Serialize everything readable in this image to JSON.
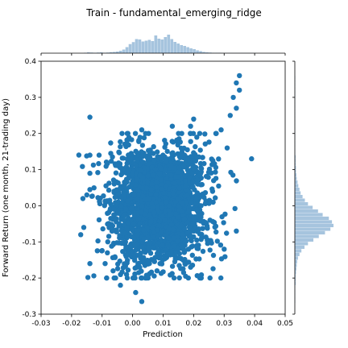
{
  "chart_data": {
    "type": "scatter",
    "title": "Train - fundamental_emerging_ridge",
    "xlabel": "Prediction",
    "ylabel": "Forward Return (one month, 21-trading day)",
    "xlim": [
      -0.03,
      0.05
    ],
    "ylim": [
      -0.3,
      0.4
    ],
    "xticks": [
      "-0.03",
      "-0.02",
      "-0.01",
      "0.00",
      "0.01",
      "0.02",
      "0.03",
      "0.04",
      "0.05"
    ],
    "xtick_values": [
      -0.03,
      -0.02,
      -0.01,
      0.0,
      0.01,
      0.02,
      0.03,
      0.04,
      0.05
    ],
    "yticks": [
      "-0.3",
      "-0.2",
      "-0.1",
      "0.0",
      "0.1",
      "0.2",
      "0.3",
      "0.4"
    ],
    "ytick_values": [
      -0.3,
      -0.2,
      -0.1,
      0.0,
      0.1,
      0.2,
      0.3,
      0.4
    ],
    "grid": false,
    "point_color": "#1f77b4",
    "hist_color": "#a6c4de",
    "notable_points": [
      {
        "x": -0.014,
        "y": 0.245
      },
      {
        "x": 0.035,
        "y": 0.36
      },
      {
        "x": 0.034,
        "y": 0.34
      },
      {
        "x": 0.035,
        "y": 0.32
      },
      {
        "x": 0.033,
        "y": 0.3
      },
      {
        "x": 0.034,
        "y": 0.27
      },
      {
        "x": 0.032,
        "y": 0.25
      },
      {
        "x": 0.031,
        "y": 0.16
      },
      {
        "x": 0.039,
        "y": 0.13
      },
      {
        "x": 0.02,
        "y": 0.24
      },
      {
        "x": 0.019,
        "y": 0.22
      },
      {
        "x": 0.022,
        "y": 0.2
      },
      {
        "x": 0.003,
        "y": 0.21
      },
      {
        "x": 0.013,
        "y": 0.22
      },
      {
        "x": 0.003,
        "y": -0.265
      },
      {
        "x": 0.001,
        "y": -0.24
      },
      {
        "x": -0.004,
        "y": -0.22
      },
      {
        "x": 0.003,
        "y": -0.2
      },
      {
        "x": -0.002,
        "y": -0.19
      },
      {
        "x": 0.002,
        "y": -0.185
      },
      {
        "x": 0.008,
        "y": -0.18
      },
      {
        "x": 0.019,
        "y": -0.17
      },
      {
        "x": -0.014,
        "y": -0.16
      },
      {
        "x": -0.009,
        "y": -0.16
      },
      {
        "x": -0.017,
        "y": -0.08
      },
      {
        "x": -0.016,
        "y": -0.06
      },
      {
        "x": -0.015,
        "y": 0.03
      },
      {
        "x": -0.014,
        "y": 0.14
      },
      {
        "x": -0.014,
        "y": 0.09
      },
      {
        "x": -0.011,
        "y": 0.14
      },
      {
        "x": 0.029,
        "y": 0.21
      },
      {
        "x": 0.034,
        "y": -0.07
      },
      {
        "x": 0.03,
        "y": -0.12
      }
    ],
    "cloud": {
      "x_mean": 0.0085,
      "x_sd": 0.0075,
      "y_mean": 0.0,
      "y_sd": 0.065
    },
    "hist_x": {
      "bin_start": -0.016,
      "bin_width": 0.00105,
      "counts": [
        0.02,
        0.04,
        0.03,
        0.02,
        0.03,
        0.04,
        0.02,
        0.03,
        0.05,
        0.06,
        0.08,
        0.12,
        0.18,
        0.3,
        0.45,
        0.55,
        0.7,
        0.68,
        0.58,
        0.62,
        0.66,
        0.6,
        0.88,
        0.72,
        0.68,
        0.8,
        0.92,
        0.7,
        0.56,
        0.48,
        0.4,
        0.36,
        0.3,
        0.24,
        0.2,
        0.14,
        0.1,
        0.06,
        0.04,
        0.03,
        0.02,
        0.02,
        0.02,
        0.01,
        0.01,
        0.01,
        0.01,
        0.01,
        0.01,
        0.01,
        0.01,
        0.01,
        0.01,
        0.01
      ]
    },
    "hist_y": {
      "bin_start": -0.27,
      "bin_width": 0.01,
      "counts": [
        0.01,
        0.01,
        0.01,
        0.01,
        0.01,
        0.02,
        0.02,
        0.02,
        0.03,
        0.04,
        0.05,
        0.06,
        0.08,
        0.12,
        0.17,
        0.25,
        0.34,
        0.48,
        0.62,
        0.78,
        0.92,
        1.0,
        0.96,
        0.88,
        0.72,
        0.6,
        0.46,
        0.34,
        0.26,
        0.2,
        0.15,
        0.12,
        0.09,
        0.07,
        0.05,
        0.04,
        0.03,
        0.03,
        0.02,
        0.02,
        0.02,
        0.01,
        0.01,
        0.01,
        0.01,
        0.01,
        0.01,
        0.01,
        0.01,
        0.01,
        0.01,
        0.01,
        0.01,
        0.01,
        0.01,
        0.01,
        0.01,
        0.01,
        0.01,
        0.01,
        0.01,
        0.01,
        0.01
      ]
    }
  }
}
